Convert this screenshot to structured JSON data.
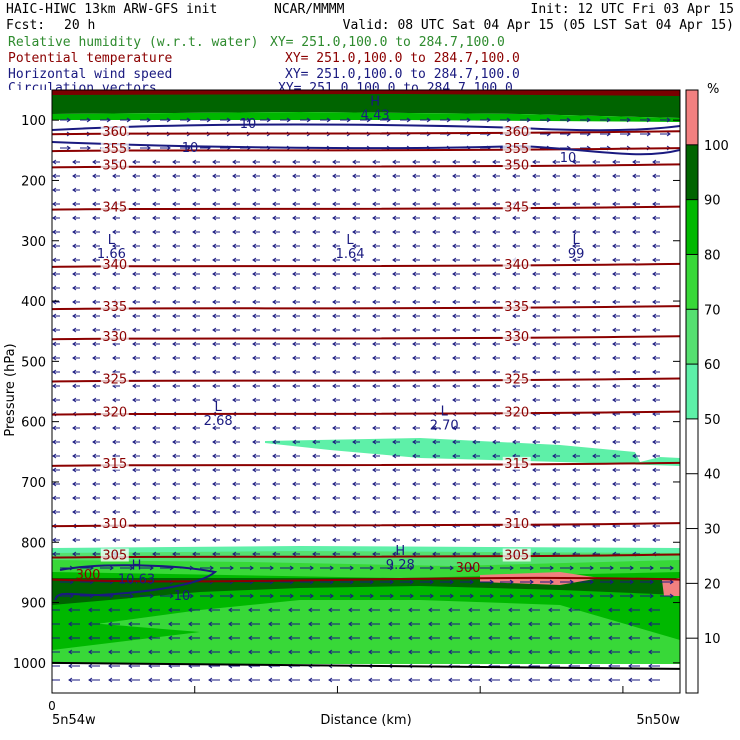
{
  "header": {
    "model": "HAIC-HIWC 13km ARW-GFS init",
    "org": "NCAR/MMMM",
    "init": "Init: 12 UTC Fri 03 Apr 15",
    "fcst_label": "Fcst:",
    "fcst_value": "20 h",
    "valid": "Valid: 08 UTC Sat 04 Apr 15 (05 LST Sat 04 Apr 15)"
  },
  "fields": [
    {
      "name": "Relative humidity (w.r.t. water)",
      "xy": "XY= 251.0,100.0 to 284.7,100.0",
      "color": "#2e8b2e"
    },
    {
      "name": "Potential temperature",
      "xy": "XY= 251.0,100.0 to 284.7,100.0",
      "color": "#8b0000"
    },
    {
      "name": "Horizontal wind speed",
      "xy": "XY= 251.0,100.0 to 284.7,100.0",
      "color": "#1a1a80"
    },
    {
      "name": "Circulation vectors",
      "xy": "XY= 251.0,100.0 to 284.7,100.0",
      "color": "#1a1a80"
    }
  ],
  "chart_data": {
    "type": "heatmap",
    "xlabel": "Distance (km)",
    "ylabel": "Pressure (hPa)",
    "x_tick_labels": [
      "0"
    ],
    "x_start_label": "5n54w",
    "x_end_label": "5n50w",
    "y_ticks": [
      100,
      200,
      300,
      400,
      500,
      600,
      700,
      800,
      900,
      1000
    ],
    "ylim": [
      1050,
      50
    ],
    "colorbar": {
      "unit": "%",
      "ticks": [
        10,
        20,
        30,
        40,
        50,
        60,
        70,
        80,
        90,
        100
      ],
      "bins": [
        {
          "from": 0,
          "to": 50,
          "color": "#ffffff"
        },
        {
          "from": 50,
          "to": 60,
          "color": "#5ef0a8"
        },
        {
          "from": 60,
          "to": 70,
          "color": "#55e070"
        },
        {
          "from": 70,
          "to": 80,
          "color": "#38d838"
        },
        {
          "from": 80,
          "to": 90,
          "color": "#00b800"
        },
        {
          "from": 90,
          "to": 100,
          "color": "#006400"
        },
        {
          "from": 100,
          "to": 110,
          "color": "#f28080"
        }
      ]
    },
    "theta_contours": [
      {
        "label": "305",
        "p": 822
      },
      {
        "label": "310",
        "p": 770
      },
      {
        "label": "315",
        "p": 670
      },
      {
        "label": "320",
        "p": 585
      },
      {
        "label": "325",
        "p": 530
      },
      {
        "label": "330",
        "p": 460
      },
      {
        "label": "335",
        "p": 410
      },
      {
        "label": "340",
        "p": 340
      },
      {
        "label": "345",
        "p": 245
      },
      {
        "label": "350",
        "p": 175
      },
      {
        "label": "355",
        "p": 148
      },
      {
        "label": "360",
        "p": 120
      }
    ],
    "highs_lows": [
      {
        "type": "L",
        "value": "1.66"
      },
      {
        "type": "L",
        "value": "1.64"
      },
      {
        "type": "L",
        "value": "99"
      },
      {
        "type": "L",
        "value": "2.68"
      },
      {
        "type": "L",
        "value": "2.70"
      },
      {
        "type": "H",
        "value": "9.28"
      },
      {
        "type": "H",
        "value": "10.63"
      },
      {
        "type": "H",
        "value": "4.43"
      }
    ],
    "wind_labels": [
      "10",
      "10",
      "10",
      "10"
    ]
  }
}
